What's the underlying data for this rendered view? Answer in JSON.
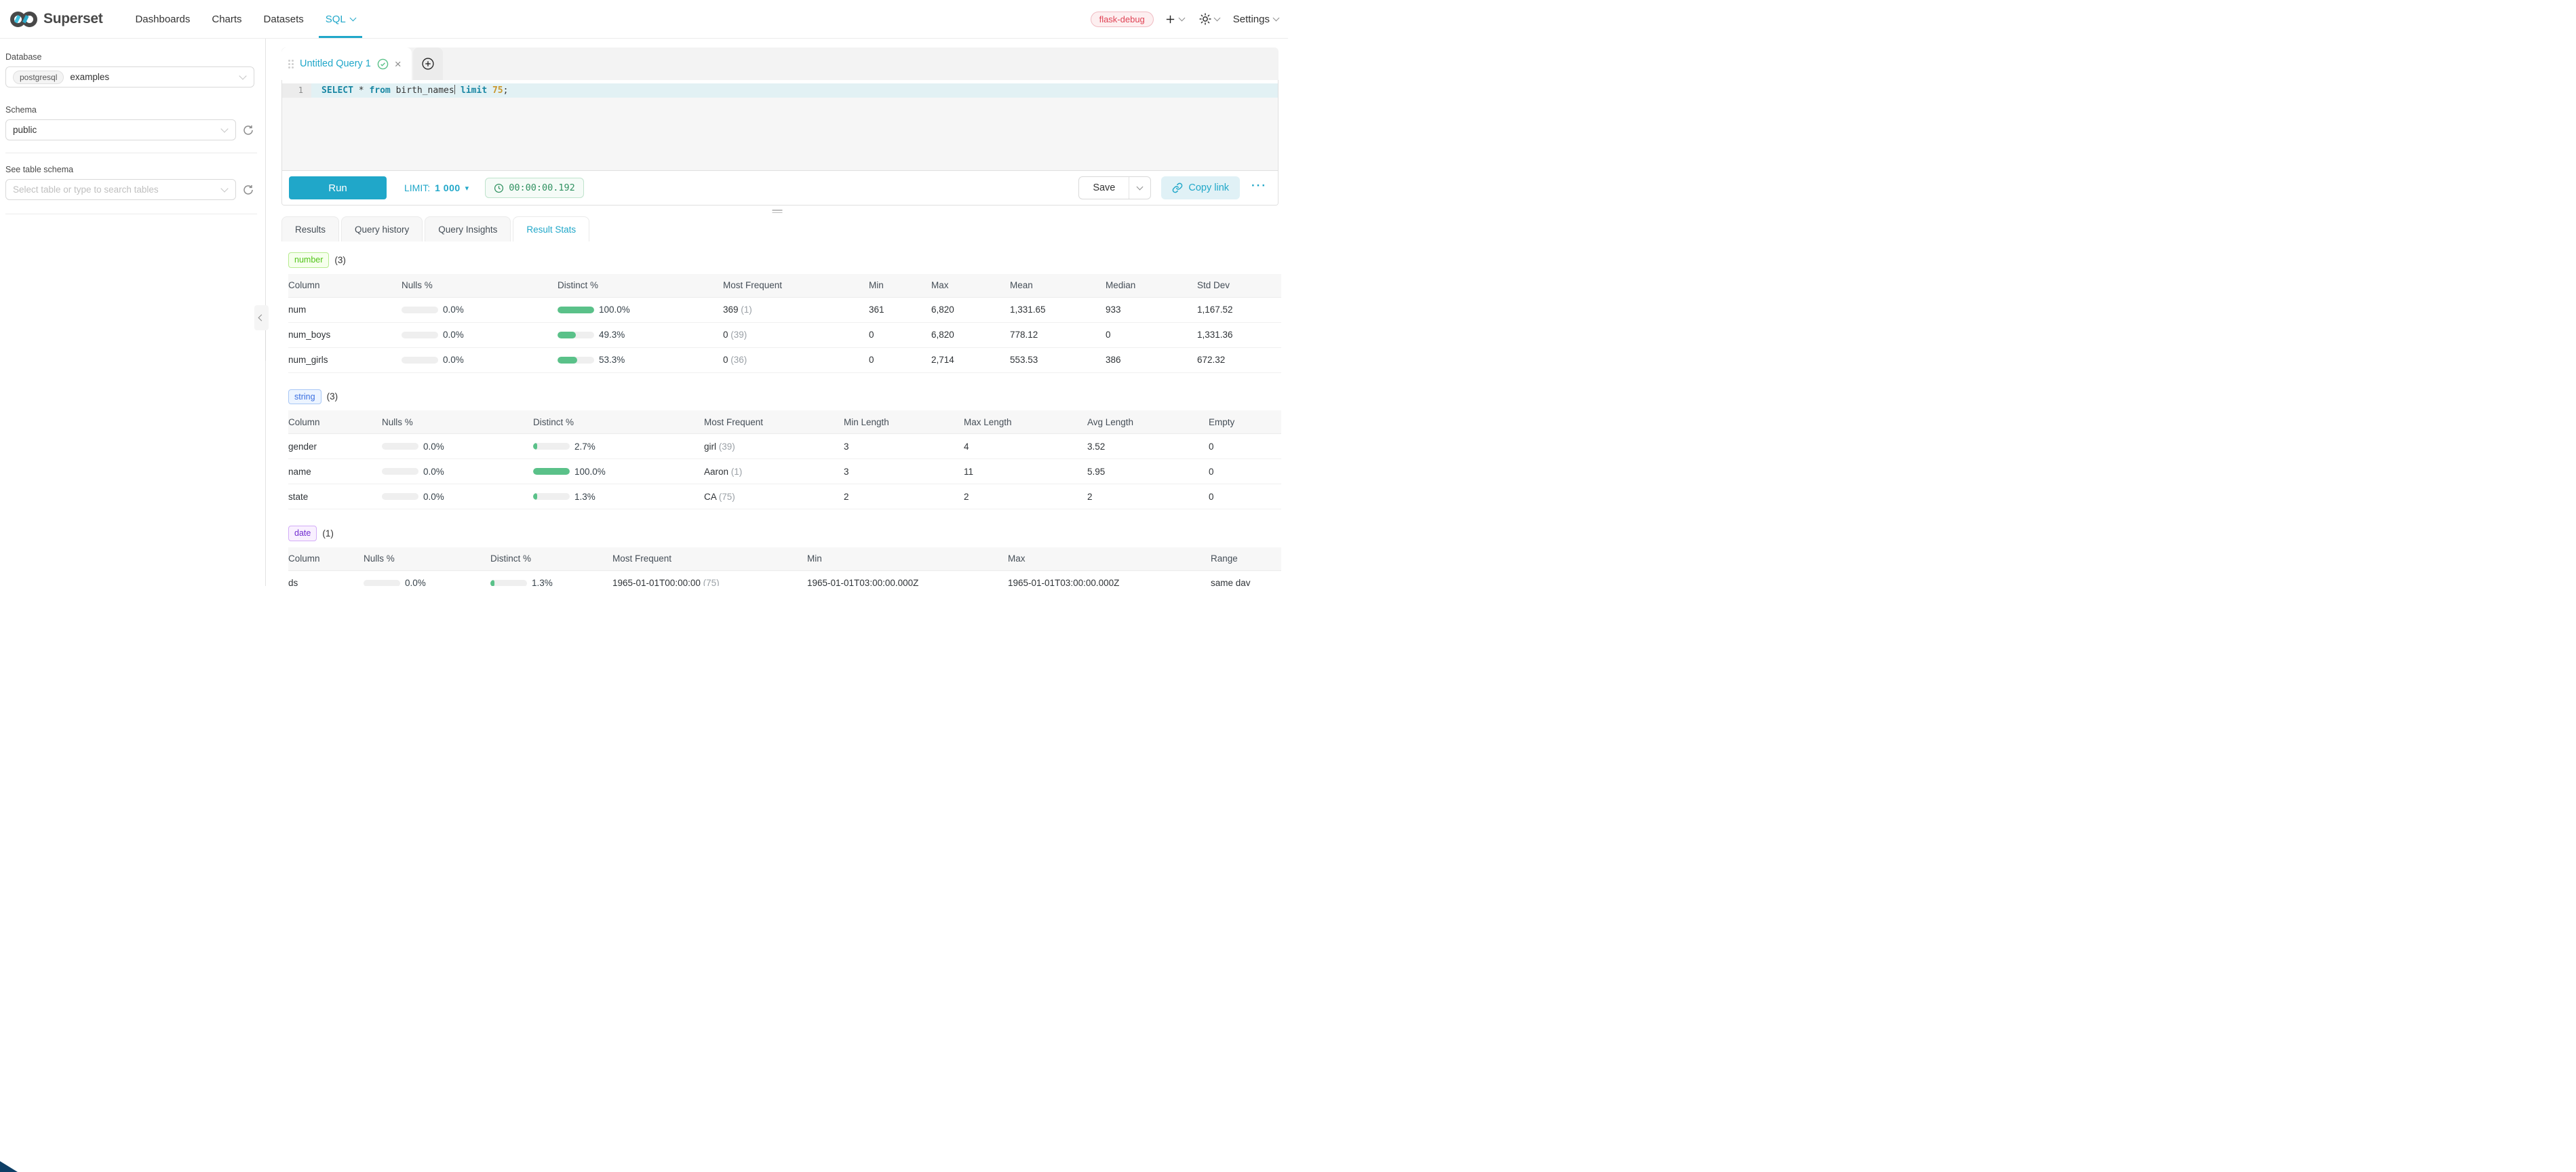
{
  "header": {
    "brand": "Superset",
    "nav_items": [
      {
        "label": "Dashboards",
        "active": false,
        "caret": false
      },
      {
        "label": "Charts",
        "active": false,
        "caret": false
      },
      {
        "label": "Datasets",
        "active": false,
        "caret": false
      },
      {
        "label": "SQL",
        "active": true,
        "caret": true
      }
    ],
    "env_badge": "flask-debug",
    "settings_label": "Settings"
  },
  "sidebar": {
    "database_label": "Database",
    "database_engine": "postgresql",
    "database_name": "examples",
    "schema_label": "Schema",
    "schema_value": "public",
    "table_label": "See table schema",
    "table_placeholder": "Select table or type to search tables"
  },
  "editor": {
    "tab_title": "Untitled Query 1",
    "line_number": "1",
    "code_tokens": [
      {
        "text": "SELECT",
        "type": "kw"
      },
      {
        "text": " * ",
        "type": "plain"
      },
      {
        "text": "from",
        "type": "kw"
      },
      {
        "text": " birth_names",
        "type": "plain"
      },
      {
        "text": "",
        "type": "cursor"
      },
      {
        "text": " limit",
        "type": "kw"
      },
      {
        "text": " 75",
        "type": "num"
      },
      {
        "text": ";",
        "type": "plain"
      }
    ]
  },
  "toolbar": {
    "run_label": "Run",
    "limit_label": "LIMIT:",
    "limit_value": "1 000",
    "elapsed_time": "00:00:00.192",
    "save_label": "Save",
    "copy_link_label": "Copy link",
    "more_label": "···"
  },
  "results": {
    "tabs": [
      {
        "label": "Results",
        "active": false
      },
      {
        "label": "Query history",
        "active": false
      },
      {
        "label": "Query Insights",
        "active": false
      },
      {
        "label": "Result Stats",
        "active": true
      }
    ],
    "sections": [
      {
        "tag": "number",
        "tag_style": "green",
        "count": "(3)",
        "columns": [
          "Column",
          "Nulls %",
          "Distinct %",
          "Most Frequent",
          "Min",
          "Max",
          "Mean",
          "Median",
          "Std Dev"
        ],
        "rows": [
          {
            "column": "num",
            "nulls": {
              "label": "0.0%",
              "fill": 0
            },
            "distinct": {
              "label": "100.0%",
              "fill": 100
            },
            "most_frequent": {
              "value": "369",
              "count": "(1)"
            },
            "cells": [
              "361",
              "6,820",
              "1,331.65",
              "933",
              "1,167.52"
            ]
          },
          {
            "column": "num_boys",
            "nulls": {
              "label": "0.0%",
              "fill": 0
            },
            "distinct": {
              "label": "49.3%",
              "fill": 49.3
            },
            "most_frequent": {
              "value": "0",
              "count": "(39)"
            },
            "cells": [
              "0",
              "6,820",
              "778.12",
              "0",
              "1,331.36"
            ]
          },
          {
            "column": "num_girls",
            "nulls": {
              "label": "0.0%",
              "fill": 0
            },
            "distinct": {
              "label": "53.3%",
              "fill": 53.3
            },
            "most_frequent": {
              "value": "0",
              "count": "(36)"
            },
            "cells": [
              "0",
              "2,714",
              "553.53",
              "386",
              "672.32"
            ]
          }
        ]
      },
      {
        "tag": "string",
        "tag_style": "blue",
        "count": "(3)",
        "columns": [
          "Column",
          "Nulls %",
          "Distinct %",
          "Most Frequent",
          "Min Length",
          "Max Length",
          "Avg Length",
          "Empty"
        ],
        "rows": [
          {
            "column": "gender",
            "nulls": {
              "label": "0.0%",
              "fill": 0
            },
            "distinct": {
              "label": "2.7%",
              "fill": 2.7
            },
            "most_frequent": {
              "value": "girl",
              "count": "(39)"
            },
            "cells": [
              "3",
              "4",
              "3.52",
              "0"
            ]
          },
          {
            "column": "name",
            "nulls": {
              "label": "0.0%",
              "fill": 0
            },
            "distinct": {
              "label": "100.0%",
              "fill": 100
            },
            "most_frequent": {
              "value": "Aaron",
              "count": "(1)"
            },
            "cells": [
              "3",
              "11",
              "5.95",
              "0"
            ]
          },
          {
            "column": "state",
            "nulls": {
              "label": "0.0%",
              "fill": 0
            },
            "distinct": {
              "label": "1.3%",
              "fill": 1.3
            },
            "most_frequent": {
              "value": "CA",
              "count": "(75)"
            },
            "cells": [
              "2",
              "2",
              "2",
              "0"
            ]
          }
        ]
      },
      {
        "tag": "date",
        "tag_style": "purple",
        "count": "(1)",
        "columns": [
          "Column",
          "Nulls %",
          "Distinct %",
          "Most Frequent",
          "Min",
          "Max",
          "Range"
        ],
        "rows": [
          {
            "column": "ds",
            "nulls": {
              "label": "0.0%",
              "fill": 0
            },
            "distinct": {
              "label": "1.3%",
              "fill": 1.3
            },
            "most_frequent": {
              "value": "1965-01-01T00:00:00",
              "count": "(75)"
            },
            "cells": [
              "1965-01-01T03:00:00.000Z",
              "1965-01-01T03:00:00.000Z",
              "same day"
            ]
          }
        ]
      }
    ]
  },
  "colors": {
    "primary": "#20a7c9",
    "bar_fill": "#5ac189",
    "error_badge": "#e04355"
  }
}
